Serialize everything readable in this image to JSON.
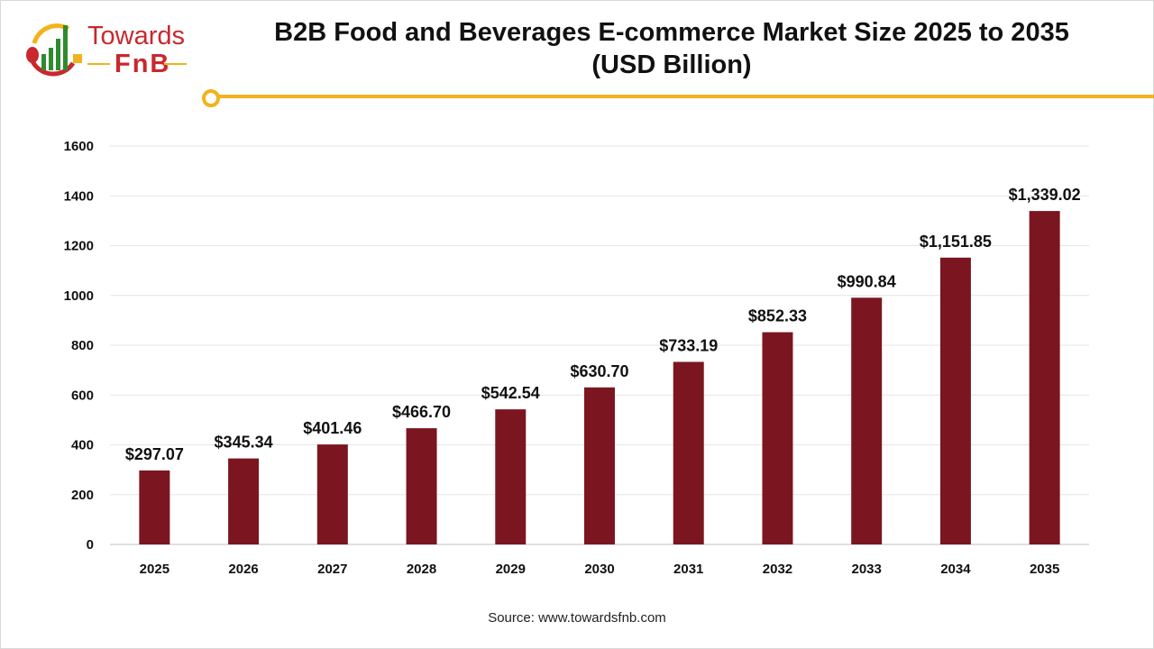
{
  "logo": {
    "line1": "Towards",
    "line2": "FnB"
  },
  "header": {
    "title_line1": "B2B Food and Beverages E-commerce Market Size 2025 to 2035",
    "title_line2": "(USD Billion)"
  },
  "source": "Source: www.towardsfnb.com",
  "colors": {
    "bar": "#7b1620",
    "accent": "#f2b31b",
    "brand": "#c8282e"
  },
  "chart_data": {
    "type": "bar",
    "title": "B2B Food and Beverages E-commerce Market Size 2025 to 2035 (USD Billion)",
    "categories": [
      "2025",
      "2026",
      "2027",
      "2028",
      "2029",
      "2030",
      "2031",
      "2032",
      "2033",
      "2034",
      "2035"
    ],
    "values": [
      297.07,
      345.34,
      401.46,
      466.7,
      542.54,
      630.7,
      733.19,
      852.33,
      990.84,
      1151.85,
      1339.02
    ],
    "data_labels": [
      "$297.07",
      "$345.34",
      "$401.46",
      "$466.70",
      "$542.54",
      "$630.70",
      "$733.19",
      "$852.33",
      "$990.84",
      "$1,151.85",
      "$1,339.02"
    ],
    "ylim": [
      0,
      1600
    ],
    "yticks": [
      0,
      200,
      400,
      600,
      800,
      1000,
      1200,
      1400,
      1600
    ],
    "grid": true,
    "xlabel": "",
    "ylabel": ""
  }
}
